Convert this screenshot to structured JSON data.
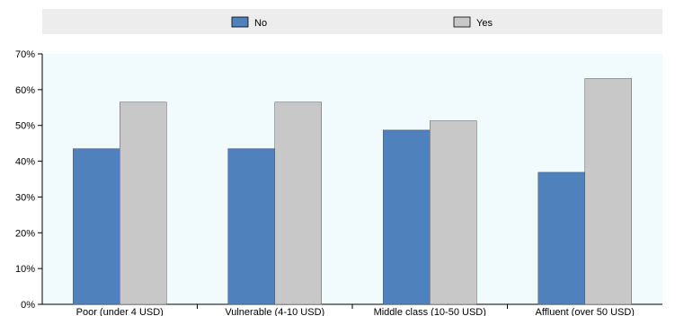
{
  "chart_data": {
    "type": "bar",
    "title": "",
    "xlabel": "",
    "ylabel": "",
    "categories": [
      "Poor (under 4 USD)",
      "Vulnerable (4-10 USD)",
      "Middle class (10-50 USD)",
      "Affluent (over 50 USD)"
    ],
    "series": [
      {
        "name": "No",
        "values": [
          43.5,
          43.5,
          48.7,
          36.9
        ],
        "color": "#4f81bd"
      },
      {
        "name": "Yes",
        "values": [
          56.5,
          56.5,
          51.3,
          63.1
        ],
        "color": "#c8c8c8"
      }
    ],
    "ylim": [
      0,
      70
    ],
    "yticks": [
      0,
      10,
      20,
      30,
      40,
      50,
      60,
      70
    ],
    "ytick_labels": [
      "0%",
      "10%",
      "20%",
      "30%",
      "40%",
      "50%",
      "60%",
      "70%"
    ],
    "grid": false,
    "legend_position": "top",
    "plot_background": "#f1fafd"
  }
}
